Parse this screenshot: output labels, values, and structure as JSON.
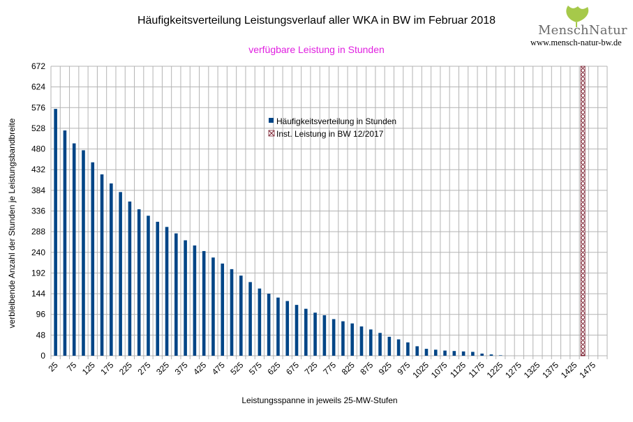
{
  "branding": {
    "name": "MenschNatur",
    "url": "www.mensch-natur-bw.de"
  },
  "colors": {
    "bar": "#004586",
    "marker": "#7b2030",
    "subtitle": "#e020e0",
    "grid": "#b3b3b3",
    "logo_leaf": "#a6c94a"
  },
  "chart_data": {
    "type": "bar",
    "title": "Häufigkeitsverteilung Leistungsverlauf aller WKA in BW im Februar 2018",
    "subtitle": "verfügbare Leistung in Stunden",
    "xlabel": "Leistungsspanne in jeweils 25-MW-Stufen",
    "ylabel": "verbleibende Anzahl der Stunden je Leistungsbandbreite",
    "ylim": [
      0,
      672
    ],
    "yticks": [
      0,
      48,
      96,
      144,
      192,
      240,
      288,
      336,
      384,
      432,
      480,
      528,
      576,
      624,
      672
    ],
    "grid": true,
    "legend_position": "top-center",
    "x": [
      25,
      50,
      75,
      100,
      125,
      150,
      175,
      200,
      225,
      250,
      275,
      300,
      325,
      350,
      375,
      400,
      425,
      450,
      475,
      500,
      525,
      550,
      575,
      600,
      625,
      650,
      675,
      700,
      725,
      750,
      775,
      800,
      825,
      850,
      875,
      900,
      925,
      950,
      975,
      1000,
      1025,
      1050,
      1075,
      1100,
      1125,
      1150,
      1175,
      1200,
      1225,
      1250,
      1275,
      1300,
      1325,
      1350,
      1375,
      1400,
      1425,
      1450,
      1475,
      1500
    ],
    "xtick_labels": [
      "25",
      "75",
      "125",
      "175",
      "225",
      "275",
      "325",
      "375",
      "425",
      "475",
      "525",
      "575",
      "625",
      "675",
      "725",
      "775",
      "825",
      "875",
      "925",
      "975",
      "1025",
      "1075",
      "1125",
      "1175",
      "1225",
      "1275",
      "1325",
      "1375",
      "1425",
      "1475"
    ],
    "series": [
      {
        "name": "Häufigkeitsverteilung in Stunden",
        "values": [
          573,
          523,
          493,
          477,
          449,
          421,
          400,
          380,
          358,
          340,
          325,
          311,
          299,
          284,
          268,
          256,
          243,
          228,
          214,
          201,
          186,
          171,
          156,
          144,
          135,
          127,
          118,
          109,
          100,
          94,
          85,
          80,
          75,
          68,
          61,
          53,
          44,
          38,
          31,
          22,
          16,
          14,
          12,
          11,
          10,
          9,
          5,
          3,
          1,
          0,
          0,
          0,
          0,
          0,
          0,
          0,
          0,
          0,
          0,
          0
        ]
      }
    ],
    "marker": {
      "name": "Inst. Leistung in BW 12/2017",
      "x": 1447,
      "style": "cross-hatched column"
    }
  }
}
